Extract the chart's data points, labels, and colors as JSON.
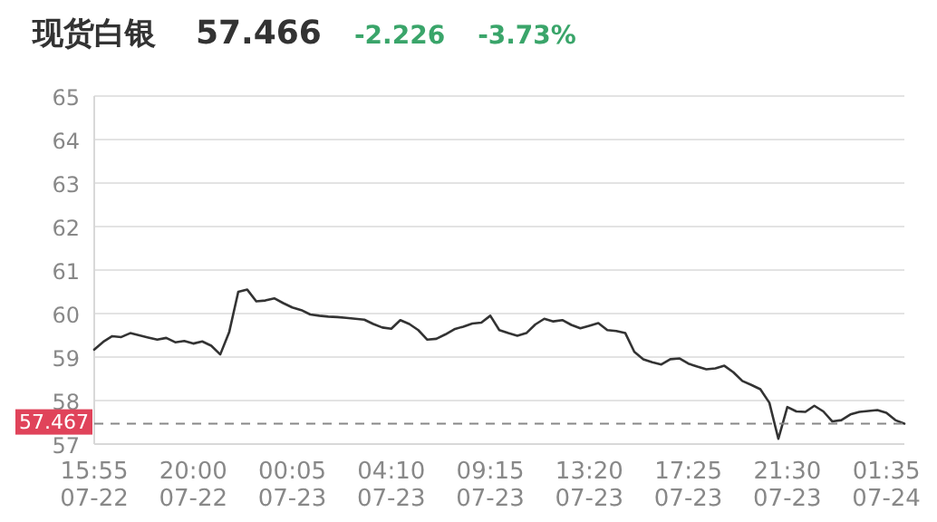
{
  "chart_data": {
    "type": "line",
    "title": "现货白银",
    "annotations": [
      "57.466",
      "-2.226",
      "-3.73%"
    ],
    "categories": [
      "15:55\n07-22",
      null,
      null,
      null,
      null,
      null,
      null,
      null,
      null,
      null,
      null,
      "20:00\n07-22",
      null,
      null,
      null,
      null,
      null,
      null,
      null,
      null,
      null,
      null,
      "00:05\n07-23",
      null,
      null,
      null,
      null,
      null,
      null,
      null,
      null,
      null,
      null,
      "04:10\n07-23",
      null,
      null,
      null,
      null,
      null,
      null,
      null,
      null,
      null,
      null,
      "09:15\n07-23",
      null,
      null,
      null,
      null,
      null,
      null,
      null,
      null,
      null,
      null,
      "13:20\n07-23",
      null,
      null,
      null,
      null,
      null,
      null,
      null,
      null,
      null,
      null,
      "17:25\n07-23",
      null,
      null,
      null,
      null,
      null,
      null,
      null,
      null,
      null,
      null,
      "21:30\n07-23",
      null,
      null,
      null,
      null,
      null,
      null,
      null,
      null,
      null,
      null,
      "01:35\n07-24",
      null,
      null
    ],
    "series": [
      {
        "color": "#333333",
        "values": [
          59.17,
          59.35,
          59.48,
          59.46,
          59.55,
          59.5,
          59.45,
          59.4,
          59.44,
          59.34,
          59.37,
          59.31,
          59.36,
          59.26,
          59.06,
          59.58,
          60.5,
          60.55,
          60.28,
          60.3,
          60.35,
          60.24,
          60.14,
          60.08,
          59.98,
          59.95,
          59.93,
          59.92,
          59.9,
          59.88,
          59.86,
          59.76,
          59.68,
          59.65,
          59.85,
          59.76,
          59.62,
          59.4,
          59.42,
          59.52,
          59.64,
          59.7,
          59.77,
          59.79,
          59.95,
          59.62,
          59.55,
          59.49,
          59.55,
          59.75,
          59.88,
          59.82,
          59.85,
          59.74,
          59.66,
          59.72,
          59.78,
          59.62,
          59.6,
          59.55,
          59.12,
          58.95,
          58.88,
          58.83,
          58.95,
          58.97,
          58.85,
          58.78,
          58.72,
          58.74,
          58.8,
          58.65,
          58.45,
          58.36,
          58.26,
          57.95,
          57.12,
          57.85,
          57.75,
          57.74,
          57.88,
          57.75,
          57.52,
          57.55,
          57.68,
          57.74,
          57.76,
          57.78,
          57.72,
          57.55,
          57.47
        ]
      }
    ],
    "ylim": [
      57,
      65
    ],
    "yticks": [
      57,
      58,
      59,
      60,
      61,
      62,
      63,
      64,
      65
    ],
    "grid": "y",
    "ref_lines": [
      {
        "axis": "y",
        "value": 57.467,
        "label": "57.467",
        "line_style": "dashed"
      }
    ]
  }
}
